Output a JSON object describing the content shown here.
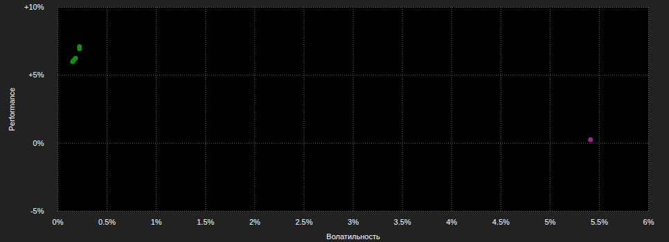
{
  "chart_data": {
    "type": "scatter",
    "x_label": "Волатильность",
    "y_label": "Performance",
    "xlim": [
      0,
      6
    ],
    "ylim": [
      -5,
      10
    ],
    "xticks": [
      {
        "value": 0,
        "label": "0%"
      },
      {
        "value": 0.5,
        "label": "0.5%"
      },
      {
        "value": 1,
        "label": "1%"
      },
      {
        "value": 1.5,
        "label": "1.5%"
      },
      {
        "value": 2,
        "label": "2%"
      },
      {
        "value": 2.5,
        "label": "2.5%"
      },
      {
        "value": 3,
        "label": "3%"
      },
      {
        "value": 3.5,
        "label": "3.5%"
      },
      {
        "value": 4,
        "label": "4%"
      },
      {
        "value": 4.5,
        "label": "4.5%"
      },
      {
        "value": 5,
        "label": "5%"
      },
      {
        "value": 5.5,
        "label": "5.5%"
      },
      {
        "value": 6,
        "label": "6%"
      }
    ],
    "yticks": [
      {
        "value": -5,
        "label": "-5%"
      },
      {
        "value": 0,
        "label": "0%"
      },
      {
        "value": 5,
        "label": "+5%"
      },
      {
        "value": 10,
        "label": "+10%"
      }
    ],
    "grid": true,
    "series": [
      {
        "color": "#109010",
        "marker": "circle",
        "x": [
          0.22,
          0.22,
          0.18,
          0.16,
          0.15
        ],
        "values": [
          7.1,
          6.95,
          6.25,
          6.1,
          6.0
        ]
      },
      {
        "color": "#a020a0",
        "marker": "circle",
        "x": [
          5.41
        ],
        "values": [
          0.26
        ]
      }
    ]
  }
}
